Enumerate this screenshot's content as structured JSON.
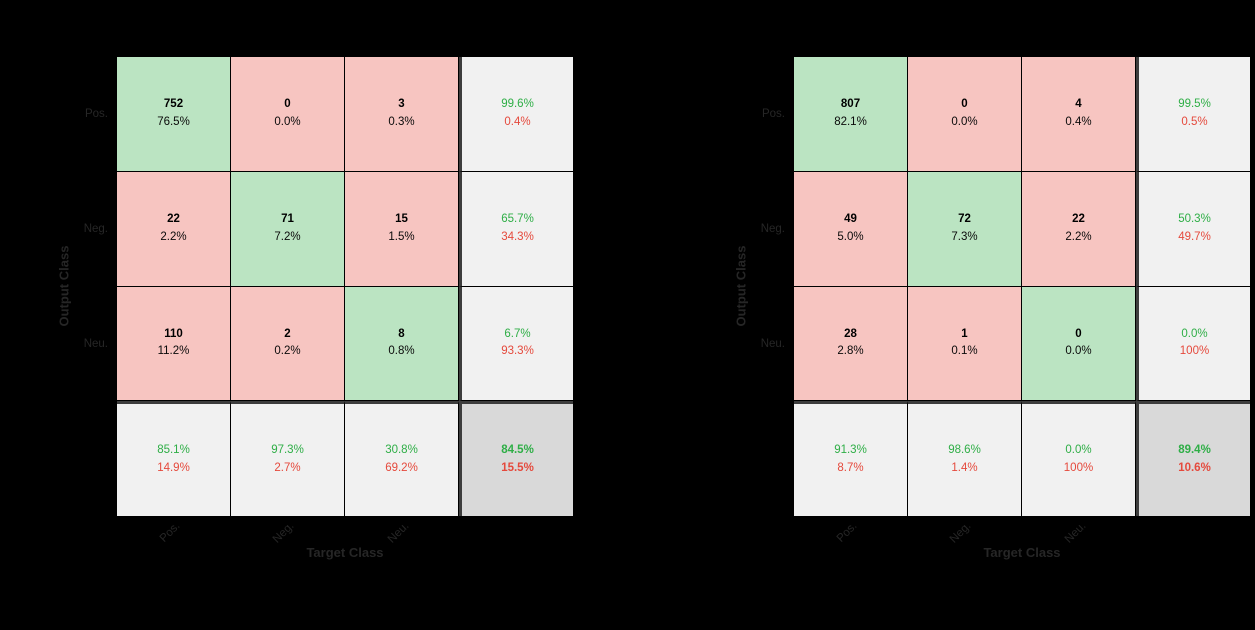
{
  "figure": {
    "background": "#000000",
    "description": "Two 3-class confusion matrices (Pos/Neg/Neu) side by side, MATLAB plotconfusion style"
  },
  "colors": {
    "correct_cell": "#bbe4c2",
    "incorrect_cell": "#f7c5c1",
    "summary_cell": "#f1f1f1",
    "total_cell": "#d9d9d9",
    "good_text": "#2eae46",
    "bad_text": "#e5493c",
    "axis_text": "#262626",
    "grid_line": "#000000",
    "separator_line": "#3d3d3d"
  },
  "chart_data": [
    {
      "type": "heatmap",
      "name": "confusion-matrix-left",
      "classes": [
        "Pos.",
        "Neg.",
        "Neu."
      ],
      "xlabel": "Target Class",
      "ylabel": "Output Class",
      "counts": [
        [
          752,
          0,
          3
        ],
        [
          22,
          71,
          15
        ],
        [
          110,
          2,
          8
        ]
      ],
      "count_percents": [
        [
          "76.5%",
          "0.0%",
          "0.3%"
        ],
        [
          "2.2%",
          "7.2%",
          "1.5%"
        ],
        [
          "11.2%",
          "0.2%",
          "0.8%"
        ]
      ],
      "row_summary": [
        [
          "99.6%",
          "0.4%"
        ],
        [
          "65.7%",
          "34.3%"
        ],
        [
          "6.7%",
          "93.3%"
        ]
      ],
      "col_summary": [
        [
          "85.1%",
          "14.9%"
        ],
        [
          "97.3%",
          "2.7%"
        ],
        [
          "30.8%",
          "69.2%"
        ]
      ],
      "overall": [
        "84.5%",
        "15.5%"
      ]
    },
    {
      "type": "heatmap",
      "name": "confusion-matrix-right",
      "classes": [
        "Pos.",
        "Neg.",
        "Neu."
      ],
      "xlabel": "Target Class",
      "ylabel": "Output Class",
      "counts": [
        [
          807,
          0,
          4
        ],
        [
          49,
          72,
          22
        ],
        [
          28,
          1,
          0
        ]
      ],
      "count_percents": [
        [
          "82.1%",
          "0.0%",
          "0.4%"
        ],
        [
          "5.0%",
          "7.3%",
          "2.2%"
        ],
        [
          "2.8%",
          "0.1%",
          "0.0%"
        ]
      ],
      "row_summary": [
        [
          "99.5%",
          "0.5%"
        ],
        [
          "50.3%",
          "49.7%"
        ],
        [
          "0.0%",
          "100%"
        ]
      ],
      "col_summary": [
        [
          "91.3%",
          "8.7%"
        ],
        [
          "98.6%",
          "1.4%"
        ],
        [
          "0.0%",
          "100%"
        ]
      ],
      "overall": [
        "89.4%",
        "10.6%"
      ]
    }
  ]
}
